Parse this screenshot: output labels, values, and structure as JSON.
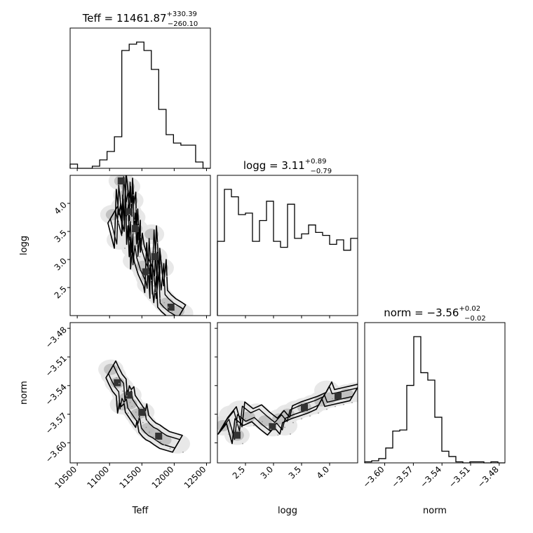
{
  "figure": {
    "params": [
      "Teff",
      "logg",
      "norm"
    ],
    "axis_labels": {
      "Teff": "Teff",
      "logg": "logg",
      "norm": "norm"
    }
  },
  "chart_data": [
    {
      "type": "histogram",
      "param": "Teff",
      "title_main": "Teff = 11461.87",
      "title_sup": "+330.39",
      "title_sub": "−260.10",
      "median": 11461.87,
      "err_plus": 330.39,
      "err_minus": 260.1,
      "xlim": [
        10390,
        12560
      ],
      "bin_width": 100,
      "counts": [
        2,
        0,
        0,
        1,
        4,
        8,
        15,
        56,
        59,
        60,
        56,
        47,
        28,
        16,
        12,
        11,
        11,
        3,
        0
      ]
    },
    {
      "type": "histogram",
      "param": "logg",
      "title_main": "logg = 3.11",
      "title_sup": "+0.89",
      "title_sub": "−0.79",
      "median": 3.11,
      "err_plus": 0.89,
      "err_minus": 0.79,
      "xlim": [
        2.0,
        4.5
      ],
      "bin_width": 0.125,
      "counts": [
        50,
        85,
        80,
        68,
        69,
        50,
        64,
        77,
        50,
        46,
        75,
        52,
        55,
        61,
        56,
        54,
        48,
        51,
        44,
        52
      ]
    },
    {
      "type": "histogram",
      "param": "norm",
      "title_main": "norm = −3.56",
      "title_sup": "+0.02",
      "title_sub": "−0.02",
      "median": -3.56,
      "err_plus": 0.02,
      "err_minus": 0.02,
      "xlim": [
        -3.621,
        -3.474
      ],
      "bin_width": 0.0074,
      "counts": [
        1,
        2,
        4,
        14,
        30,
        31,
        73,
        119,
        85,
        78,
        43,
        11,
        6,
        1,
        0,
        1,
        1,
        0,
        1,
        0
      ]
    },
    {
      "type": "scatter",
      "x": "Teff",
      "y": "logg",
      "xlim": [
        10390,
        12560
      ],
      "ylim": [
        2.0,
        4.5
      ],
      "yticks": [
        "2.5",
        "3.0",
        "3.5",
        "4.0"
      ],
      "points": [
        [
          11180,
          4.4
        ],
        [
          11280,
          4.3
        ],
        [
          11250,
          4.15
        ],
        [
          11330,
          4.05
        ],
        [
          11220,
          3.95
        ],
        [
          11300,
          3.85
        ],
        [
          11360,
          3.75
        ],
        [
          11270,
          3.62
        ],
        [
          11400,
          3.55
        ],
        [
          11340,
          3.42
        ],
        [
          11430,
          3.32
        ],
        [
          11380,
          3.2
        ],
        [
          11460,
          3.1
        ],
        [
          11400,
          2.98
        ],
        [
          11520,
          2.88
        ],
        [
          11560,
          2.78
        ],
        [
          11600,
          2.68
        ],
        [
          11620,
          2.56
        ],
        [
          11700,
          2.46
        ],
        [
          11760,
          2.38
        ],
        [
          11820,
          2.3
        ],
        [
          11880,
          2.22
        ],
        [
          11950,
          2.15
        ],
        [
          12050,
          2.08
        ],
        [
          12100,
          2.04
        ],
        [
          11150,
          3.35
        ],
        [
          11700,
          3.05
        ],
        [
          11650,
          3.45
        ],
        [
          11050,
          3.8
        ],
        [
          11800,
          2.85
        ]
      ]
    },
    {
      "type": "scatter",
      "x": "Teff",
      "y": "norm",
      "xlim": [
        10390,
        12560
      ],
      "ylim": [
        -3.621,
        -3.474
      ],
      "yticks": [
        "−3.48",
        "−3.51",
        "−3.54",
        "−3.57",
        "−3.60"
      ],
      "points": [
        [
          11060,
          -3.529
        ],
        [
          11120,
          -3.537
        ],
        [
          11180,
          -3.542
        ],
        [
          11230,
          -3.549
        ],
        [
          11260,
          -3.553
        ],
        [
          11320,
          -3.559
        ],
        [
          11380,
          -3.565
        ],
        [
          11430,
          -3.57
        ],
        [
          11480,
          -3.575
        ],
        [
          11530,
          -3.58
        ],
        [
          11590,
          -3.585
        ],
        [
          11640,
          -3.588
        ],
        [
          11700,
          -3.59
        ],
        [
          11760,
          -3.593
        ],
        [
          11850,
          -3.597
        ],
        [
          11020,
          -3.523
        ],
        [
          11300,
          -3.55
        ],
        [
          11500,
          -3.568
        ],
        [
          12050,
          -3.601
        ],
        [
          11200,
          -3.56
        ]
      ]
    },
    {
      "type": "scatter",
      "x": "logg",
      "y": "norm",
      "xlim": [
        2.0,
        4.5
      ],
      "ylim": [
        -3.621,
        -3.474
      ],
      "xticks": [
        "2.5",
        "3.0",
        "3.5",
        "4.0"
      ],
      "points": [
        [
          2.1,
          -3.582
        ],
        [
          2.25,
          -3.571
        ],
        [
          2.4,
          -3.566
        ],
        [
          2.55,
          -3.573
        ],
        [
          2.7,
          -3.569
        ],
        [
          2.85,
          -3.577
        ],
        [
          2.98,
          -3.583
        ],
        [
          3.1,
          -3.575
        ],
        [
          3.25,
          -3.57
        ],
        [
          3.4,
          -3.566
        ],
        [
          3.55,
          -3.563
        ],
        [
          3.7,
          -3.56
        ],
        [
          3.85,
          -3.556
        ],
        [
          4.0,
          -3.553
        ],
        [
          4.15,
          -3.551
        ],
        [
          4.3,
          -3.549
        ],
        [
          4.45,
          -3.547
        ],
        [
          2.35,
          -3.592
        ],
        [
          3.2,
          -3.582
        ],
        [
          3.95,
          -3.545
        ]
      ]
    }
  ]
}
